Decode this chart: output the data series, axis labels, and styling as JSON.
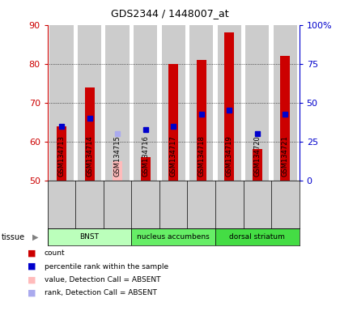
{
  "title": "GDS2344 / 1448007_at",
  "samples": [
    "GSM134713",
    "GSM134714",
    "GSM134715",
    "GSM134716",
    "GSM134717",
    "GSM134718",
    "GSM134719",
    "GSM134720",
    "GSM134721"
  ],
  "count_values": [
    64,
    74,
    null,
    56,
    80,
    81,
    88,
    58,
    82
  ],
  "absent_value": [
    null,
    null,
    55,
    null,
    null,
    null,
    null,
    null,
    null
  ],
  "rank_values": [
    64,
    66,
    null,
    63,
    64,
    67,
    68,
    62,
    67
  ],
  "absent_rank": [
    null,
    null,
    62,
    null,
    null,
    null,
    null,
    null,
    null
  ],
  "ylim_left": [
    50,
    90
  ],
  "ylim_right": [
    0,
    100
  ],
  "yticks_left": [
    50,
    60,
    70,
    80,
    90
  ],
  "yticks_right": [
    0,
    25,
    50,
    75,
    100
  ],
  "ytick_right_labels": [
    "0",
    "25",
    "50",
    "75",
    "100%"
  ],
  "tissue_groups": [
    {
      "label": "BNST",
      "start": 0,
      "end": 3
    },
    {
      "label": "nucleus accumbens",
      "start": 3,
      "end": 6
    },
    {
      "label": "dorsal striatum",
      "start": 6,
      "end": 9
    }
  ],
  "group_colors": [
    "#bbffbb",
    "#66ee66",
    "#44dd44"
  ],
  "bar_width": 0.35,
  "count_color": "#cc0000",
  "absent_bar_color": "#ffbbbb",
  "rank_color": "#0000cc",
  "absent_rank_color": "#aaaaee",
  "bar_bg_color": "#cccccc",
  "plot_bg_color": "#ffffff",
  "left_tick_color": "#cc0000",
  "right_tick_color": "#0000cc",
  "legend_labels": [
    "count",
    "percentile rank within the sample",
    "value, Detection Call = ABSENT",
    "rank, Detection Call = ABSENT"
  ],
  "legend_colors": [
    "#cc0000",
    "#0000cc",
    "#ffbbbb",
    "#aaaaee"
  ]
}
